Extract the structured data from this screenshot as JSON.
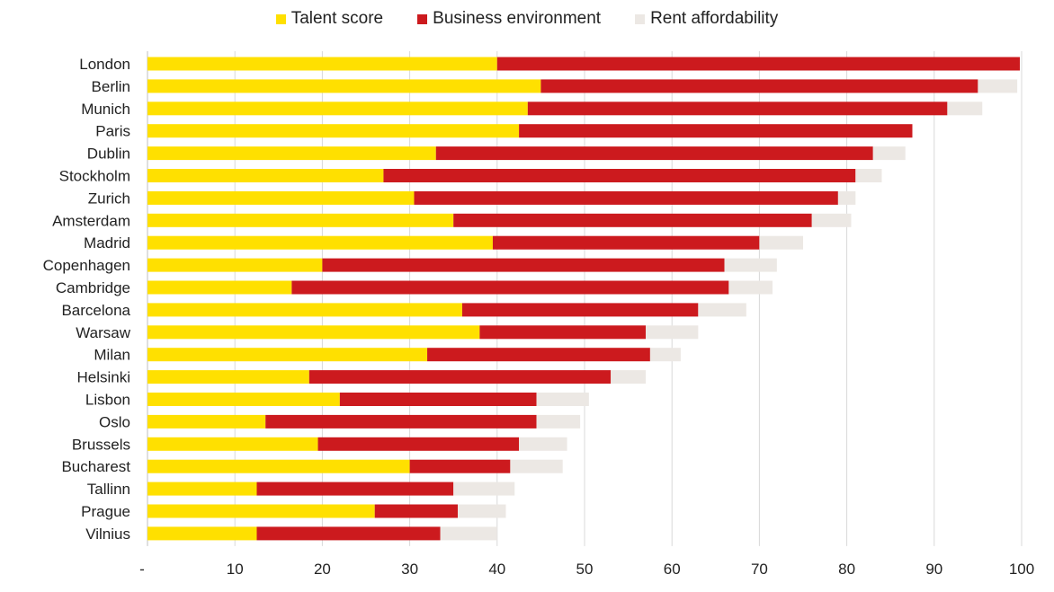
{
  "chart_data": {
    "type": "bar",
    "orientation": "horizontal",
    "stacked": true,
    "categories": [
      "London",
      "Berlin",
      "Munich",
      "Paris",
      "Dublin",
      "Stockholm",
      "Zurich",
      "Amsterdam",
      "Madrid",
      "Copenhagen",
      "Cambridge",
      "Barcelona",
      "Warsaw",
      "Milan",
      "Helsinki",
      "Lisbon",
      "Oslo",
      "Brussels",
      "Bucharest",
      "Tallinn",
      "Prague",
      "Vilnius"
    ],
    "series": [
      {
        "name": "Talent score",
        "color": "#FFE000",
        "values": [
          40.0,
          45.0,
          43.5,
          42.5,
          33.0,
          27.0,
          30.5,
          35.0,
          39.5,
          20.0,
          16.5,
          36.0,
          38.0,
          32.0,
          18.5,
          22.0,
          13.5,
          19.5,
          30.0,
          12.5,
          26.0,
          12.5
        ]
      },
      {
        "name": "Business environment",
        "color": "#CC1A1E",
        "values": [
          59.8,
          50.0,
          48.0,
          45.0,
          50.0,
          54.0,
          48.5,
          41.0,
          30.5,
          46.0,
          50.0,
          27.0,
          19.0,
          25.5,
          34.5,
          22.5,
          31.0,
          23.0,
          11.5,
          22.5,
          9.5,
          21.0
        ]
      },
      {
        "name": "Rent affordability",
        "color": "#ECE8E4",
        "values": [
          0.0,
          4.5,
          4.0,
          0.0,
          3.7,
          3.0,
          2.0,
          4.5,
          5.0,
          6.0,
          5.0,
          5.5,
          6.0,
          3.5,
          4.0,
          6.0,
          5.0,
          5.5,
          6.0,
          7.0,
          5.5,
          6.5
        ]
      }
    ],
    "xaxis": {
      "min": 0,
      "max": 100,
      "ticks": [
        0,
        10,
        20,
        30,
        40,
        50,
        60,
        70,
        80,
        90,
        100
      ],
      "tick_labels": [
        "-",
        "10",
        "20",
        "30",
        "40",
        "50",
        "60",
        "70",
        "80",
        "90",
        "100"
      ]
    },
    "grid": "vertical",
    "legend_position": "top-center",
    "title": "",
    "xlabel": "",
    "ylabel": ""
  }
}
